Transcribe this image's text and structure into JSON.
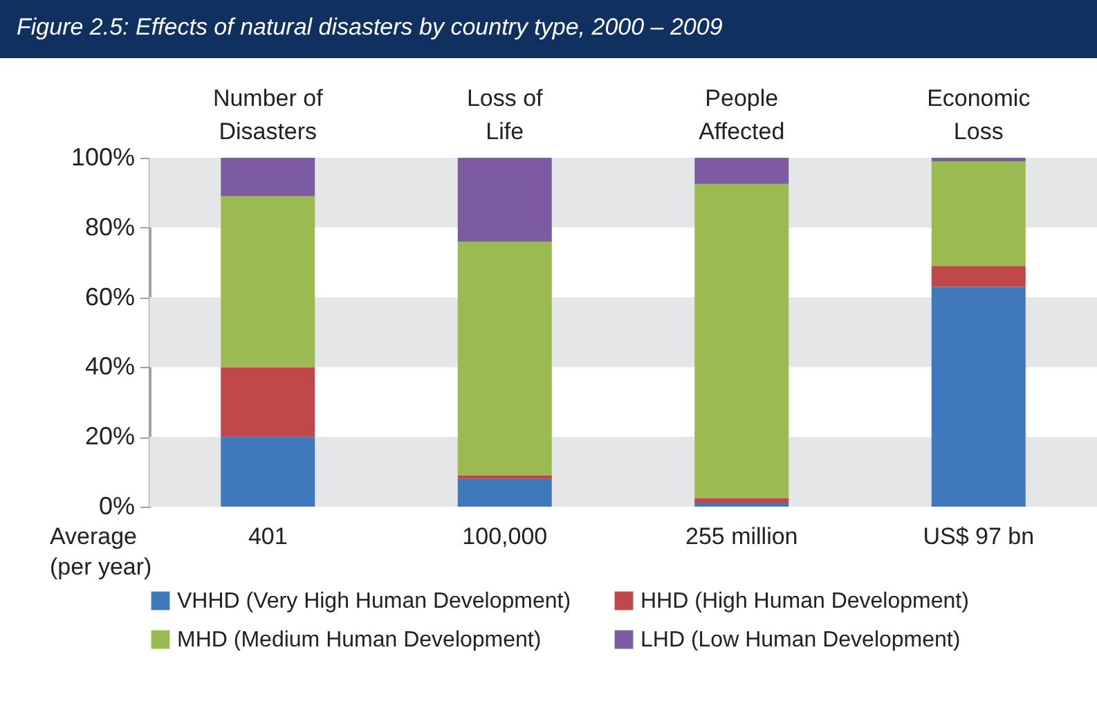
{
  "chart_data": {
    "type": "bar",
    "title": "Figure 2.5: Effects of natural disasters by country type, 2000 – 2009",
    "categories": [
      "Number of Disasters",
      "Loss of Life",
      "People Affected",
      "Economic Loss"
    ],
    "stacked": true,
    "series": [
      {
        "name": "VHHD (Very High Human Development)",
        "color": "#4079bb",
        "values": [
          20,
          8,
          1,
          63
        ]
      },
      {
        "name": "HHD (High Human Development)",
        "color": "#c0474a",
        "values": [
          20,
          1,
          1.5,
          6
        ]
      },
      {
        "name": "MHD (Medium Human Development)",
        "color": "#9bba51",
        "values": [
          49,
          67,
          90,
          30
        ]
      },
      {
        "name": "LHD (Low Human Development)",
        "color": "#7c5ba0",
        "values": [
          11,
          24,
          7.5,
          1
        ]
      }
    ],
    "ylim": [
      0,
      100
    ],
    "yticks": [
      {
        "value": 0,
        "label": "0%"
      },
      {
        "value": 20,
        "label": "20%"
      },
      {
        "value": 40,
        "label": "40%"
      },
      {
        "value": 60,
        "label": "60%"
      },
      {
        "value": 80,
        "label": "80%"
      },
      {
        "value": 100,
        "label": "100%"
      }
    ],
    "bands": [
      {
        "axis": "y",
        "from": 0,
        "to": 20,
        "color": "#e5e6e8"
      },
      {
        "axis": "y",
        "from": 40,
        "to": 60,
        "color": "#e5e6e8"
      },
      {
        "axis": "y",
        "from": 80,
        "to": 100,
        "color": "#e5e6e8"
      }
    ],
    "grid": false,
    "legend": "bottom",
    "annotations": [
      "Average (per year)",
      "401",
      "100,000",
      "255 million",
      "US$ 97 bn"
    ]
  }
}
